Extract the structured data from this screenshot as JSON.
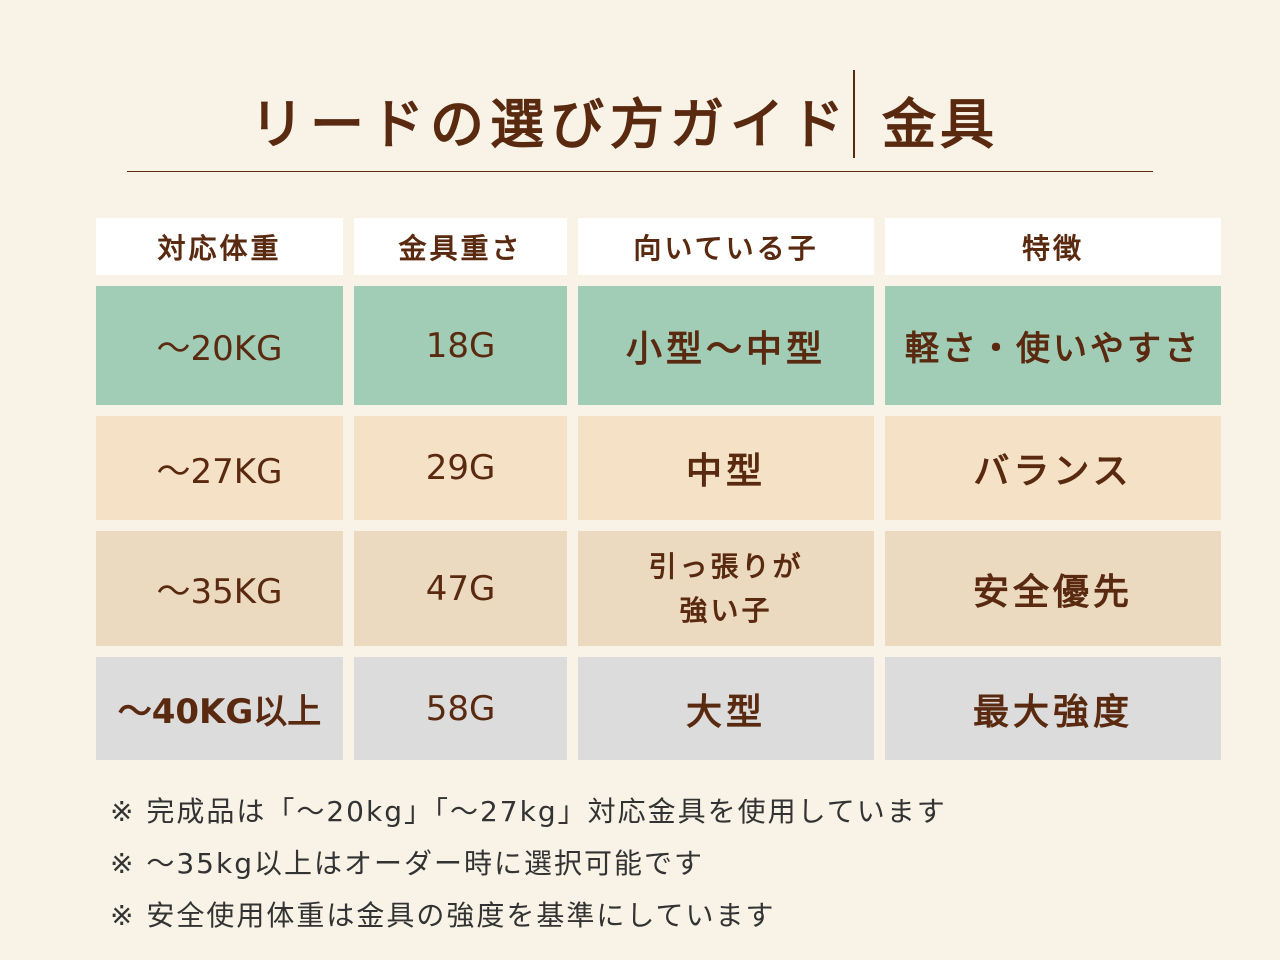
{
  "header": {
    "title": "リードの選び方ガイド",
    "subtitle": "金具"
  },
  "table": {
    "columns": [
      "対応体重",
      "金具重さ",
      "向いている子",
      "特徴"
    ],
    "rows": [
      {
        "weight": "〜20KG",
        "hardware_weight": "18G",
        "suited_for": "小型〜中型",
        "feature": "軽さ・使いやすさ",
        "color": "#a1cdb7"
      },
      {
        "weight": "〜27KG",
        "hardware_weight": "29G",
        "suited_for": "中型",
        "feature": "バランス",
        "color": "#f5e1c6"
      },
      {
        "weight": "〜35KG",
        "hardware_weight": "47G",
        "suited_for": "引っ張りが\n強い子",
        "feature": "安全優先",
        "color": "#ecdac0"
      },
      {
        "weight": "〜40KG以上",
        "hardware_weight": "58G",
        "suited_for": "大型",
        "feature": "最大強度",
        "color": "#dcdcdc"
      }
    ]
  },
  "notes": [
    "※ 完成品は「〜20kg」「〜27kg」対応金具を使用しています",
    "※ 〜35kg以上はオーダー時に選択可能です",
    "※ 安全使用体重は金具の強度を基準にしています"
  ]
}
